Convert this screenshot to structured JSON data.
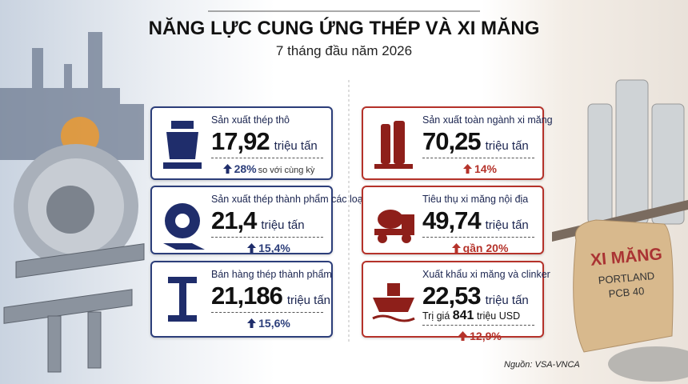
{
  "header": {
    "title": "NĂNG LỰC CUNG ỨNG THÉP VÀ XI MĂNG",
    "subtitle": "7 tháng đầu năm 2026"
  },
  "steel": {
    "cards": [
      {
        "label": "Sản xuất thép thô",
        "value": "17,92",
        "unit": "triệu tấn",
        "change": "28%",
        "change_note": "so với cùng kỳ"
      },
      {
        "label": "Sản xuất thép thành phẩm các loại",
        "value": "21,4",
        "unit": "triệu tấn",
        "change": "15,4%"
      },
      {
        "label": "Bán hàng thép thành phẩm",
        "value": "21,186",
        "unit": "triệu tấn",
        "change": "15,6%"
      }
    ]
  },
  "cement": {
    "cards": [
      {
        "label": "Sản xuất toàn ngành xi măng",
        "value": "70,25",
        "unit": "triệu tấn",
        "change": "14%"
      },
      {
        "label": "Tiêu thụ xi măng nội địa",
        "value": "49,74",
        "unit": "triệu tấn",
        "change": "gần 20%"
      },
      {
        "label": "Xuất khẩu xi măng và clinker",
        "value": "22,53",
        "unit": "triệu tấn",
        "extra_prefix": "Trị giá",
        "extra_value": "841",
        "extra_unit": "triệu USD",
        "change": "12,9%"
      }
    ]
  },
  "bag": {
    "line1": "XI MĂNG",
    "line2": "PORTLAND",
    "line3": "PCB 40"
  },
  "source": "Nguồn: VSA-VNCA"
}
